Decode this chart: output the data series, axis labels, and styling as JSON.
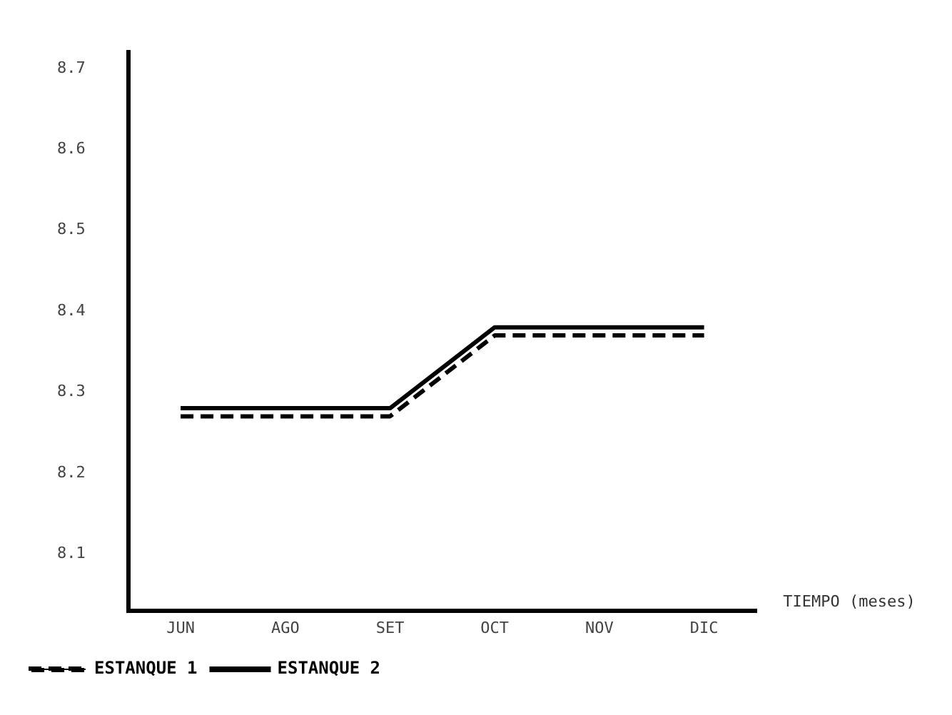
{
  "chart_data": {
    "type": "line",
    "categories": [
      "JUN",
      "AGO",
      "SET",
      "OCT",
      "NOV",
      "DIC"
    ],
    "series": [
      {
        "name": "ESTANQUE 1",
        "color": "#000000",
        "line_style": "dashed",
        "values": [
          8.27,
          8.27,
          8.27,
          8.37,
          8.37,
          8.37
        ]
      },
      {
        "name": "ESTANQUE 2",
        "color": "#000000",
        "line_style": "solid",
        "values": [
          8.28,
          8.28,
          8.28,
          8.38,
          8.38,
          8.38
        ]
      }
    ],
    "xlabel": "TIEMPO (meses)",
    "ylim": [
      8.03,
      8.72
    ],
    "yticks": [
      8.1,
      8.2,
      8.3,
      8.4,
      8.5,
      8.6,
      8.7
    ],
    "grid": false,
    "legend": "bottom left",
    "marker": "none"
  }
}
